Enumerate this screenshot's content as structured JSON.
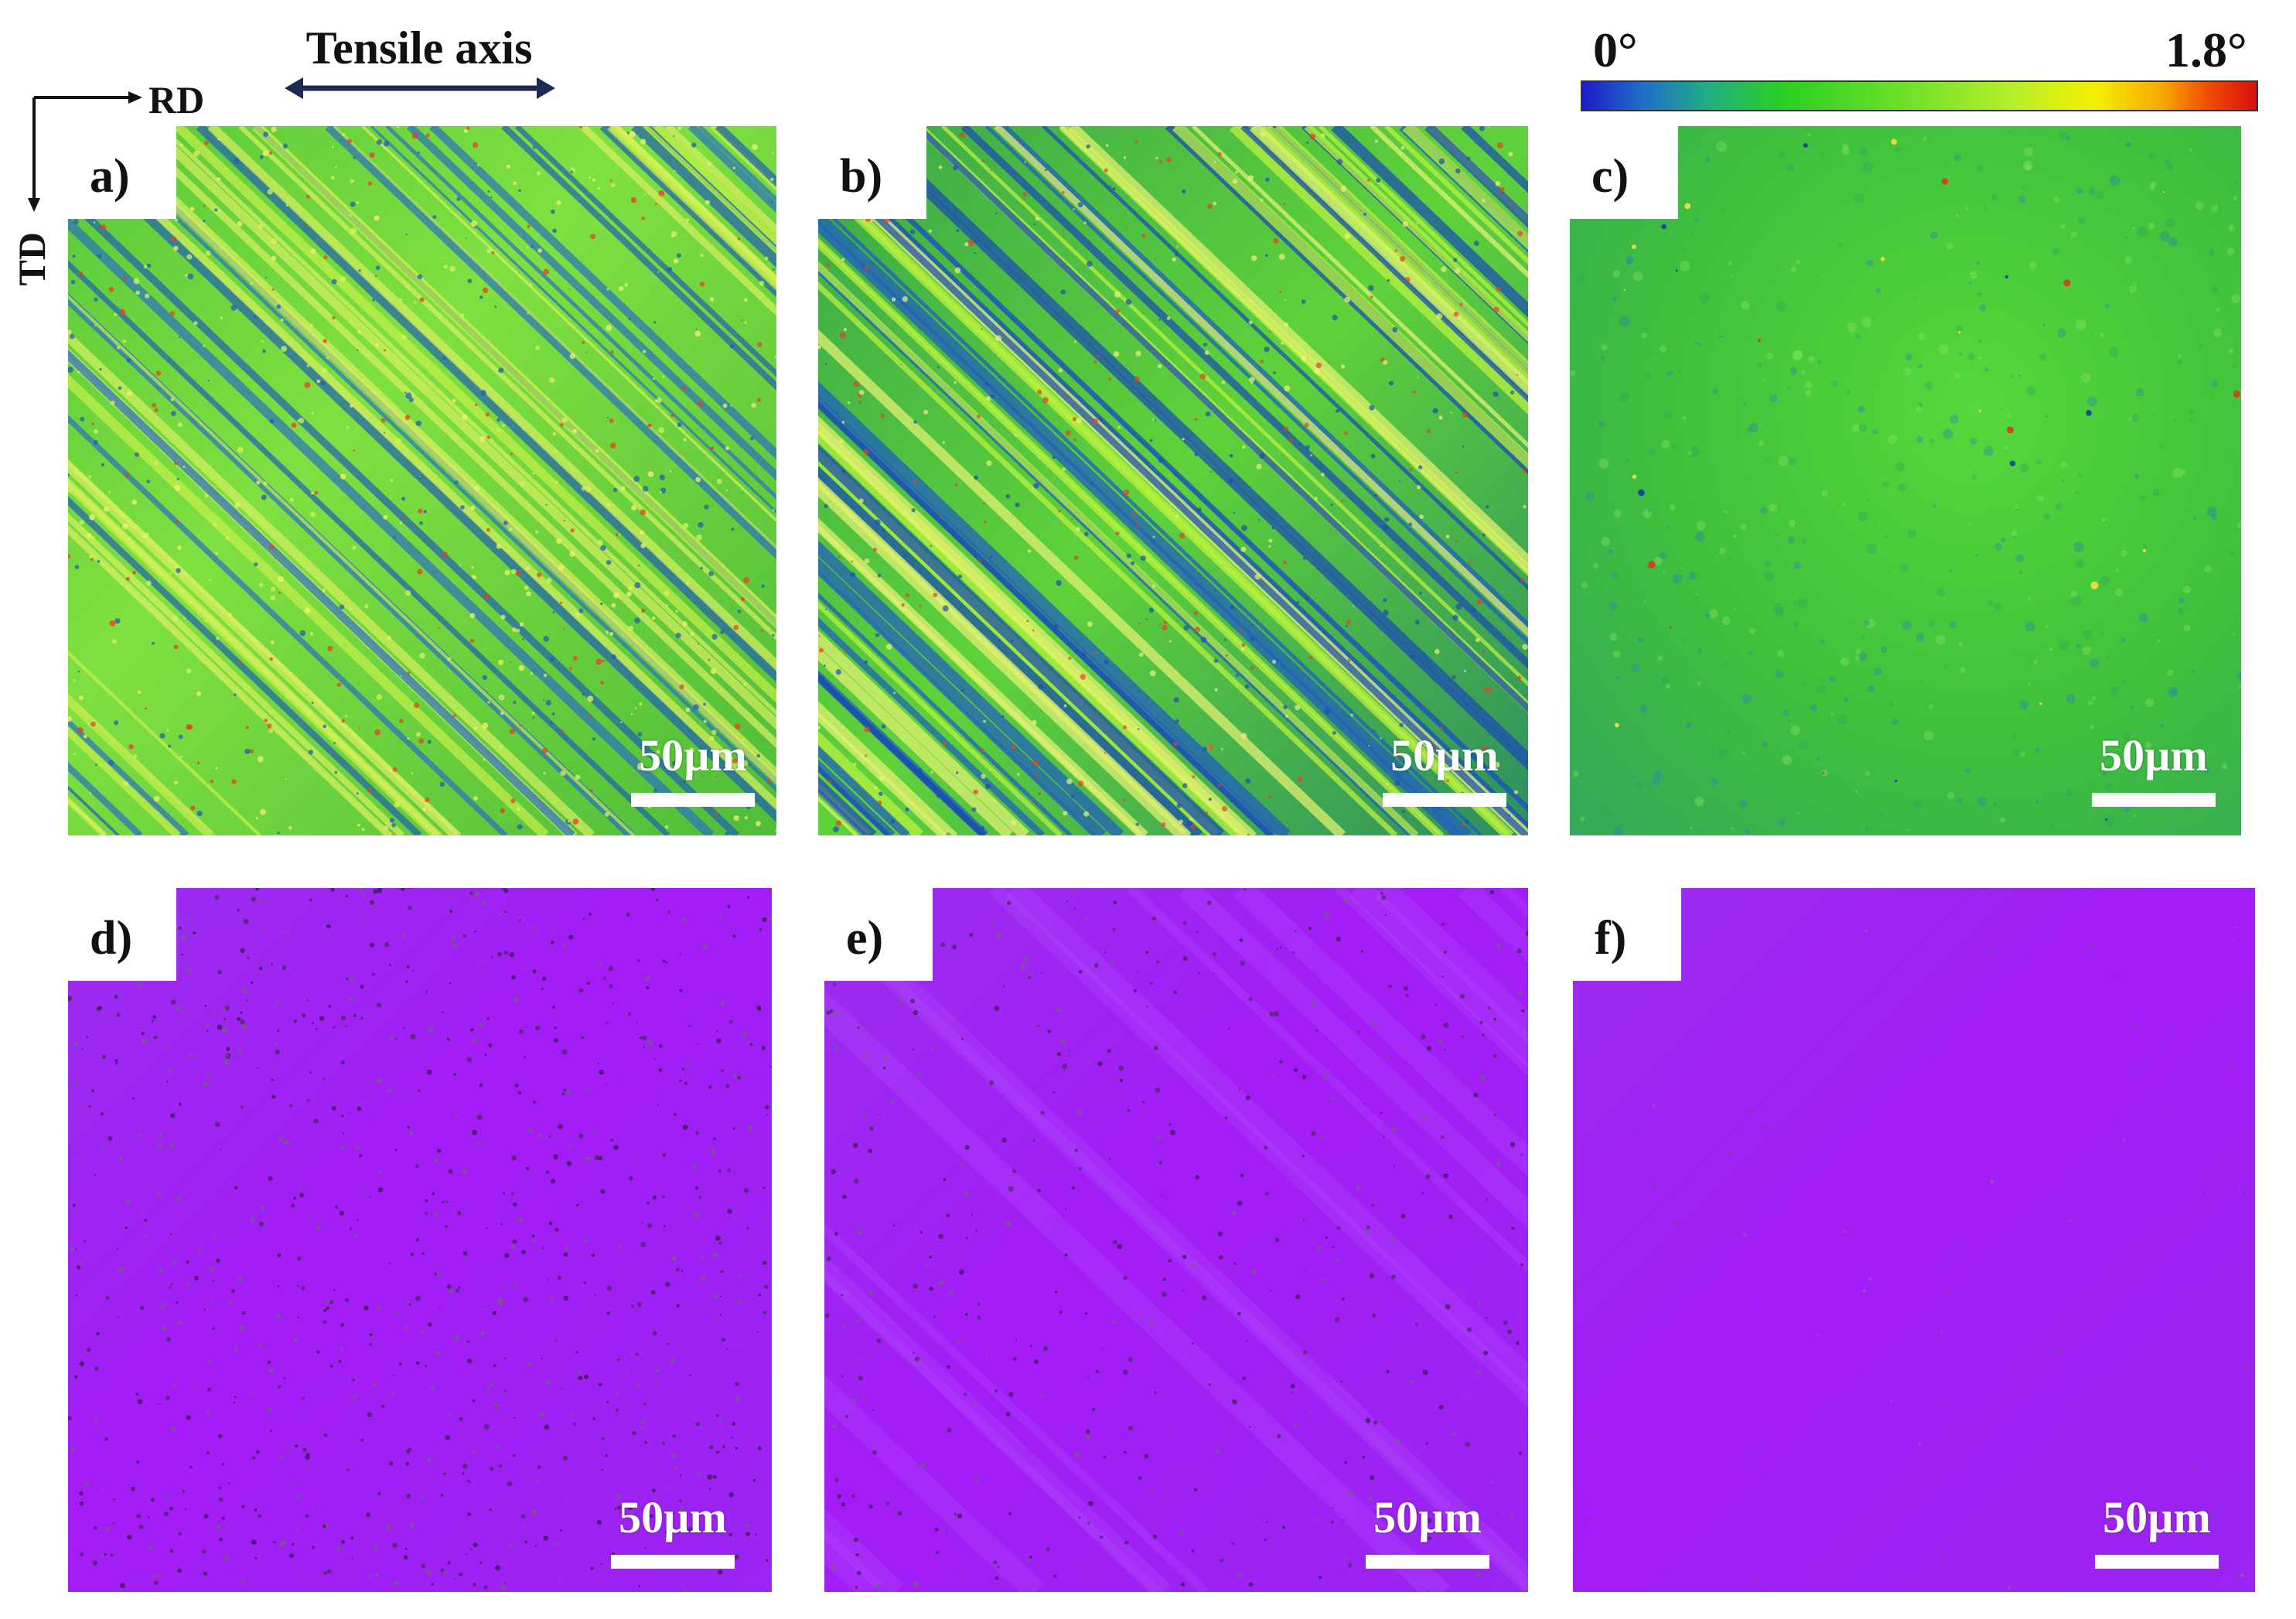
{
  "header": {
    "tensile_axis_label": "Tensile axis",
    "rd_label": "RD",
    "td_label": "TD"
  },
  "colorbar": {
    "min_label": "0°",
    "max_label": "1.8°",
    "colors": [
      "#1c1cc8",
      "#20b080",
      "#2ad020",
      "#b8ef2a",
      "#f4f000",
      "#f8a800",
      "#d81010"
    ]
  },
  "panels": [
    {
      "label": "a)",
      "scale_bar": "50µm",
      "map": "KAM"
    },
    {
      "label": "b)",
      "scale_bar": "50µm",
      "map": "KAM"
    },
    {
      "label": "c)",
      "scale_bar": "50µm",
      "map": "KAM"
    },
    {
      "label": "d)",
      "scale_bar": "50µm",
      "map": "IPF"
    },
    {
      "label": "e)",
      "scale_bar": "50µm",
      "map": "IPF"
    },
    {
      "label": "f)",
      "scale_bar": "50µm",
      "map": "IPF"
    }
  ]
}
